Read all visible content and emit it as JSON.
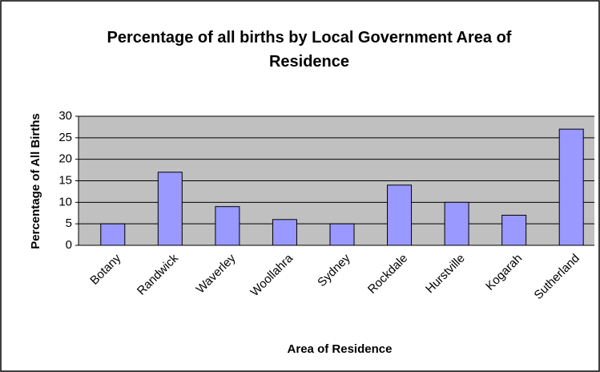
{
  "chart_data": {
    "type": "bar",
    "title": "Percentage of all births by Local Government Area of Residence",
    "x_label": "Area of Residence",
    "y_label": "Percentage of All Births",
    "categories": [
      "Botany",
      "Randwick",
      "Waverley",
      "Woollahra",
      "Sydney",
      "Rockdale",
      "Hurstville",
      "Kogarah",
      "Sutherland"
    ],
    "values": [
      5,
      17,
      9,
      6,
      5,
      14,
      10,
      7,
      27
    ],
    "color": "#9999ff",
    "plot_background": "#c0c0c0",
    "ylim": [
      0,
      30
    ],
    "yticks": [
      0,
      5,
      10,
      15,
      20,
      25,
      30
    ],
    "grid": true
  }
}
